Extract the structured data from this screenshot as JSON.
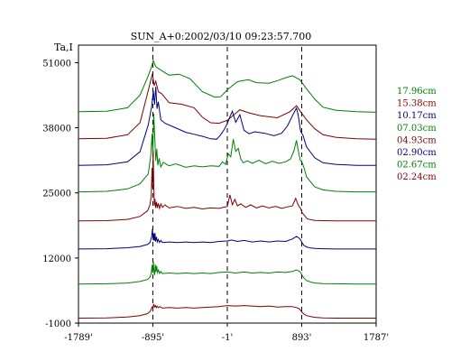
{
  "chart_data": {
    "type": "line",
    "title": "SUN_A+0:2002/03/10 09:23:57.700",
    "ylabel": "Ta,I",
    "xlabel": "",
    "x_tick_labels": [
      "-1789'",
      "-895'",
      "-1'",
      "893'",
      "1787'"
    ],
    "x_tick_values": [
      -1789,
      -895,
      -1,
      893,
      1787
    ],
    "y_tick_labels": [
      "51000",
      "38000",
      "25000",
      "12000",
      "-1000"
    ],
    "y_tick_values": [
      51000,
      38000,
      25000,
      12000,
      -1000
    ],
    "xlim": [
      -1789,
      1787
    ],
    "ylim": [
      -1000,
      51000
    ],
    "grid": false,
    "legend_position": "right",
    "reference_lines_x": [
      -895,
      -1,
      893
    ],
    "series": [
      {
        "name": "17.96cm",
        "color": "#008000",
        "x": [
          -1789,
          -1450,
          -1200,
          -1050,
          -960,
          -915,
          -890,
          -860,
          -800,
          -700,
          -580,
          -450,
          -300,
          -150,
          -80,
          0,
          120,
          250,
          350,
          500,
          620,
          700,
          780,
          870,
          950,
          1050,
          1150,
          1300,
          1550,
          1787
        ],
        "y": [
          41200,
          41300,
          42000,
          44500,
          48000,
          50000,
          51400,
          50200,
          49500,
          48500,
          48700,
          47800,
          45200,
          44100,
          44200,
          45600,
          47200,
          47600,
          47000,
          46900,
          47500,
          48000,
          48400,
          47600,
          45800,
          43700,
          42100,
          41500,
          41200,
          41100
        ]
      },
      {
        "name": "15.38cm",
        "color": "#800000",
        "x": [
          -1789,
          -1450,
          -1200,
          -1050,
          -960,
          -920,
          -900,
          -880,
          -860,
          -830,
          -790,
          -700,
          -550,
          -400,
          -300,
          -200,
          -100,
          0,
          80,
          150,
          250,
          400,
          600,
          750,
          830,
          880,
          950,
          1050,
          1150,
          1300,
          1550,
          1787
        ],
        "y": [
          35800,
          35900,
          36600,
          39000,
          44800,
          47500,
          48800,
          46400,
          47300,
          45200,
          44800,
          43000,
          42700,
          42000,
          40100,
          39000,
          38900,
          39500,
          40600,
          41600,
          41000,
          40400,
          40000,
          41200,
          42400,
          41200,
          39600,
          37800,
          36600,
          36100,
          35800,
          35700
        ]
      },
      {
        "name": "10.17cm",
        "color": "#000080",
        "x": [
          -1789,
          -1450,
          -1200,
          -1050,
          -950,
          -910,
          -890,
          -875,
          -860,
          -845,
          -830,
          -800,
          -750,
          -650,
          -500,
          -400,
          -300,
          -200,
          -130,
          -80,
          -40,
          0,
          30,
          60,
          100,
          150,
          200,
          260,
          330,
          450,
          560,
          650,
          720,
          790,
          830,
          850,
          880,
          910,
          950,
          1050,
          1150,
          1300,
          1550,
          1787
        ],
        "y": [
          30500,
          30600,
          31200,
          33200,
          38600,
          42200,
          45400,
          42600,
          46200,
          41800,
          43200,
          39600,
          38900,
          38200,
          37100,
          36700,
          36300,
          35800,
          35700,
          36600,
          37600,
          38900,
          40200,
          41300,
          39100,
          40600,
          37500,
          36800,
          37200,
          36900,
          36400,
          36900,
          38300,
          40700,
          41900,
          40600,
          37300,
          36400,
          34200,
          32000,
          31000,
          30700,
          30500,
          30500
        ]
      },
      {
        "name": "07.03cm",
        "color": "#008000",
        "x": [
          -1789,
          -1450,
          -1200,
          -1050,
          -950,
          -920,
          -905,
          -895,
          -885,
          -872,
          -860,
          -848,
          -835,
          -820,
          -800,
          -770,
          -700,
          -620,
          -500,
          -400,
          -300,
          -200,
          -100,
          -60,
          -20,
          10,
          40,
          70,
          100,
          130,
          160,
          190,
          240,
          300,
          380,
          460,
          540,
          620,
          700,
          760,
          800,
          830,
          850,
          875,
          900,
          925,
          950,
          1050,
          1150,
          1300,
          1550,
          1787
        ],
        "y": [
          25200,
          25300,
          25800,
          26800,
          28800,
          32500,
          36800,
          33000,
          40800,
          36000,
          31400,
          33800,
          30500,
          31900,
          30200,
          31100,
          30400,
          30800,
          30100,
          30400,
          30200,
          30400,
          30300,
          31200,
          30700,
          32800,
          32200,
          35700,
          33300,
          33900,
          31800,
          31000,
          31400,
          30900,
          31500,
          30800,
          31300,
          30900,
          31200,
          31800,
          33400,
          35500,
          33600,
          31600,
          31000,
          29800,
          28200,
          26200,
          25600,
          25300,
          25200,
          25200
        ]
      },
      {
        "name": "04.93cm",
        "color": "#800000",
        "x": [
          -1789,
          -1450,
          -1200,
          -1050,
          -960,
          -930,
          -915,
          -905,
          -898,
          -892,
          -885,
          -878,
          -870,
          -862,
          -852,
          -842,
          -830,
          -815,
          -800,
          -780,
          -750,
          -700,
          -600,
          -500,
          -400,
          -300,
          -200,
          -100,
          0,
          30,
          60,
          90,
          120,
          160,
          220,
          280,
          350,
          420,
          500,
          580,
          650,
          720,
          780,
          820,
          845,
          860,
          880,
          900,
          930,
          960,
          1050,
          1150,
          1300,
          1550,
          1787
        ],
        "y": [
          19400,
          19450,
          19700,
          20300,
          21400,
          22600,
          24500,
          30000,
          26000,
          33500,
          27500,
          22500,
          23800,
          22000,
          23200,
          22000,
          22900,
          21900,
          22800,
          22100,
          22600,
          22000,
          22300,
          21900,
          22100,
          21800,
          22000,
          21900,
          22300,
          24600,
          22600,
          23700,
          22400,
          22800,
          22100,
          22600,
          22000,
          22400,
          22000,
          22300,
          21900,
          22200,
          22400,
          23900,
          22800,
          22300,
          21900,
          21000,
          20400,
          19800,
          19500,
          19450,
          19400,
          19400,
          19400
        ]
      },
      {
        "name": "02.90cm",
        "color": "#000080",
        "x": [
          -1789,
          -1450,
          -1200,
          -1050,
          -960,
          -930,
          -910,
          -900,
          -892,
          -885,
          -878,
          -870,
          -862,
          -852,
          -842,
          -830,
          -815,
          -800,
          -780,
          -700,
          -600,
          -500,
          -400,
          -300,
          -200,
          -100,
          0,
          50,
          120,
          200,
          300,
          400,
          500,
          600,
          700,
          780,
          830,
          860,
          880,
          900,
          920,
          950,
          1000,
          1050,
          1150,
          1300,
          1550,
          1787
        ],
        "y": [
          13800,
          13850,
          14050,
          14300,
          14700,
          15100,
          16200,
          17800,
          15600,
          16900,
          15400,
          17000,
          15300,
          16200,
          15200,
          15700,
          15100,
          15500,
          15100,
          15200,
          15100,
          15200,
          15100,
          15200,
          15100,
          15300,
          15400,
          15600,
          15300,
          15500,
          15200,
          15400,
          15200,
          15400,
          15300,
          15800,
          16300,
          16000,
          15600,
          15000,
          14500,
          14200,
          14000,
          13900,
          13850,
          13800,
          13800,
          13800
        ]
      },
      {
        "name": "02.67cm",
        "color": "#008000",
        "x": [
          -1789,
          -1450,
          -1200,
          -1050,
          -960,
          -930,
          -915,
          -905,
          -898,
          -890,
          -882,
          -874,
          -866,
          -858,
          -850,
          -840,
          -828,
          -815,
          -800,
          -780,
          -700,
          -600,
          -500,
          -400,
          -300,
          -200,
          -100,
          0,
          100,
          200,
          300,
          400,
          500,
          600,
          700,
          780,
          830,
          860,
          880,
          900,
          920,
          950,
          1000,
          1050,
          1150,
          1300,
          1550,
          1787
        ],
        "y": [
          6800,
          6850,
          7000,
          7300,
          7700,
          8200,
          9000,
          10600,
          9000,
          11300,
          9300,
          8600,
          10700,
          9200,
          10400,
          9100,
          9600,
          8900,
          9300,
          8900,
          9000,
          8900,
          9000,
          8900,
          9000,
          8900,
          9100,
          9200,
          9000,
          9200,
          9000,
          9100,
          9000,
          9200,
          9100,
          9300,
          9600,
          9400,
          9100,
          8500,
          8000,
          7500,
          7200,
          7000,
          6900,
          6850,
          6800,
          6800
        ]
      },
      {
        "name": "02.24cm",
        "color": "#800000",
        "x": [
          -1789,
          -1450,
          -1200,
          -1050,
          -960,
          -930,
          -915,
          -905,
          -895,
          -885,
          -875,
          -865,
          -855,
          -845,
          -830,
          -810,
          -780,
          -700,
          -600,
          -500,
          -400,
          -300,
          -200,
          -100,
          0,
          100,
          200,
          300,
          400,
          500,
          600,
          700,
          780,
          830,
          860,
          880,
          900,
          920,
          950,
          1000,
          1050,
          1150,
          1300,
          1550,
          1787
        ],
        "y": [
          0,
          50,
          200,
          500,
          900,
          1300,
          1800,
          2200,
          1900,
          2800,
          2200,
          2500,
          2100,
          2400,
          2100,
          2300,
          2000,
          2100,
          2000,
          2100,
          2000,
          2100,
          2200,
          2300,
          2500,
          2400,
          2500,
          2400,
          2300,
          2400,
          2200,
          2300,
          2300,
          2100,
          1900,
          1500,
          1100,
          800,
          500,
          300,
          150,
          50,
          0,
          0,
          0
        ]
      }
    ]
  }
}
